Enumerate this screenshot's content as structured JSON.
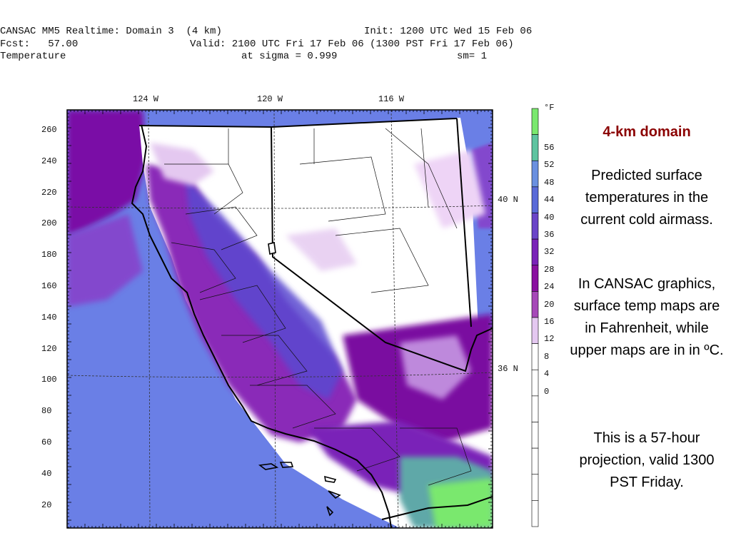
{
  "header": {
    "line1_left": "CANSAC MM5 Realtime: Domain 3  (4 km)",
    "line1_right": "Init: 1200 UTC Wed 15 Feb 06",
    "line2_left": "Fcst:   57.00",
    "line2_right": "Valid: 2100 UTC Fri 17 Feb 06 (1300 PST Fri 17 Feb 06)",
    "line3_left": "Temperature",
    "line3_mid": "at sigma = 0.999",
    "line3_right": "sm= 1"
  },
  "map": {
    "longitude_labels": [
      "124 W",
      "120 W",
      "116 W"
    ],
    "latitude_labels": [
      "40 N",
      "36 N"
    ],
    "y_axis_labels": [
      "260",
      "240",
      "220",
      "200",
      "180",
      "160",
      "140",
      "120",
      "100",
      "80",
      "60",
      "40",
      "20"
    ],
    "colors": {
      "ocean_blue": "#6a7fe6",
      "purple_dark": "#7a0a9a",
      "purple_mid": "#9a38c8",
      "lavender": "#dcb8ee",
      "light_green": "#8ee08a",
      "teal": "#5fa8a8"
    }
  },
  "legend": {
    "unit": "°F",
    "labels": [
      "56",
      "52",
      "48",
      "44",
      "40",
      "36",
      "32",
      "28",
      "24",
      "20",
      "16",
      "12",
      "8",
      "4",
      "0"
    ],
    "colors": [
      "#7ae86e",
      "#5ec4a0",
      "#6a90e0",
      "#5a6ad8",
      "#6a44c8",
      "#7a22b8",
      "#8a10a0",
      "#a648b8",
      "#e4c8f0",
      "#ffffff",
      "#ffffff",
      "#ffffff",
      "#ffffff",
      "#ffffff",
      "#ffffff",
      "#ffffff"
    ]
  },
  "sidebar": {
    "title": "4-km domain",
    "para1": "Predicted surface temperatures in the current cold airmass.",
    "para2": "In CANSAC graphics, surface temp maps are in Fahrenheit, while upper maps are in in ºC.",
    "para3": "This is a 57-hour projection, valid 1300 PST Friday."
  }
}
